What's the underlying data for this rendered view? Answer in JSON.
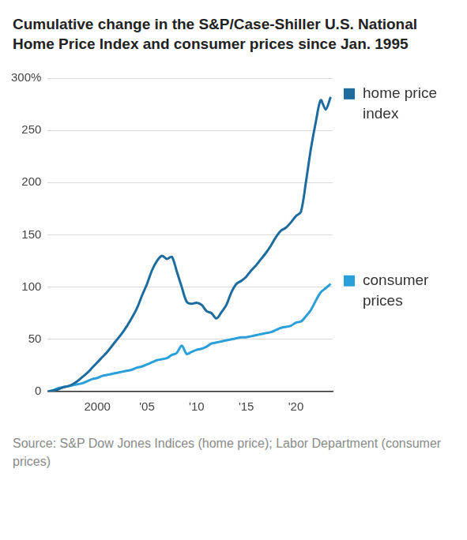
{
  "chart_data": {
    "type": "line",
    "title": "Cumulative change in the S&P/Case-Shiller U.S. National Home Price Index and consumer prices since Jan. 1995",
    "source": "Source: S&P Dow Jones Indices (home price); Labor Department (consumer prices)",
    "x": [
      1995,
      1995.5,
      1996,
      1996.5,
      1997,
      1997.5,
      1998,
      1998.5,
      1999,
      1999.5,
      2000,
      2000.5,
      2001,
      2001.5,
      2002,
      2002.5,
      2003,
      2003.5,
      2004,
      2004.5,
      2005,
      2005.5,
      2006,
      2006.5,
      2007,
      2007.5,
      2008,
      2008.5,
      2009,
      2009.5,
      2010,
      2010.5,
      2011,
      2011.5,
      2012,
      2012.5,
      2013,
      2013.5,
      2014,
      2014.5,
      2015,
      2015.5,
      2016,
      2016.5,
      2017,
      2017.5,
      2018,
      2018.5,
      2019,
      2019.5,
      2020,
      2020.5,
      2021,
      2021.5,
      2022,
      2022.5,
      2023,
      2023.5
    ],
    "series": [
      {
        "name": "home price index",
        "color": "#1d6c9f",
        "values": [
          0,
          1,
          2,
          4,
          5,
          7,
          10,
          14,
          18,
          23,
          28,
          33,
          38,
          44,
          50,
          56,
          63,
          71,
          80,
          92,
          103,
          116,
          125,
          130,
          127,
          129,
          115,
          100,
          86,
          84,
          85,
          83,
          77,
          75,
          70,
          76,
          83,
          95,
          103,
          106,
          110,
          116,
          121,
          127,
          133,
          140,
          148,
          154,
          157,
          162,
          168,
          172,
          200,
          232,
          258,
          279,
          270,
          282
        ]
      },
      {
        "name": "consumer prices",
        "color": "#2a9fd9",
        "values": [
          0,
          1,
          3,
          4,
          5,
          6,
          7,
          8,
          10,
          12,
          13,
          15,
          16,
          17,
          18,
          19,
          20,
          21,
          23,
          24,
          26,
          28,
          30,
          31,
          32,
          35,
          37,
          44,
          36,
          38,
          40,
          41,
          43,
          46,
          47,
          48,
          49,
          50,
          51,
          52,
          52,
          53,
          54,
          55,
          56,
          57,
          59,
          61,
          62,
          63,
          66,
          67,
          72,
          78,
          87,
          95,
          99,
          103
        ]
      }
    ],
    "xlim": [
      1995,
      2023.7
    ],
    "xticks": [
      2000,
      {
        "value": 2005,
        "label": "'05"
      },
      {
        "value": 2010,
        "label": "'10"
      },
      {
        "value": 2015,
        "label": "'15"
      },
      {
        "value": 2020,
        "label": "'20"
      }
    ],
    "ylim": [
      0,
      300
    ],
    "yticks": [
      0,
      50,
      100,
      150,
      200,
      250,
      {
        "value": 300,
        "label": "300%"
      }
    ],
    "grid": true,
    "legend": "right"
  }
}
